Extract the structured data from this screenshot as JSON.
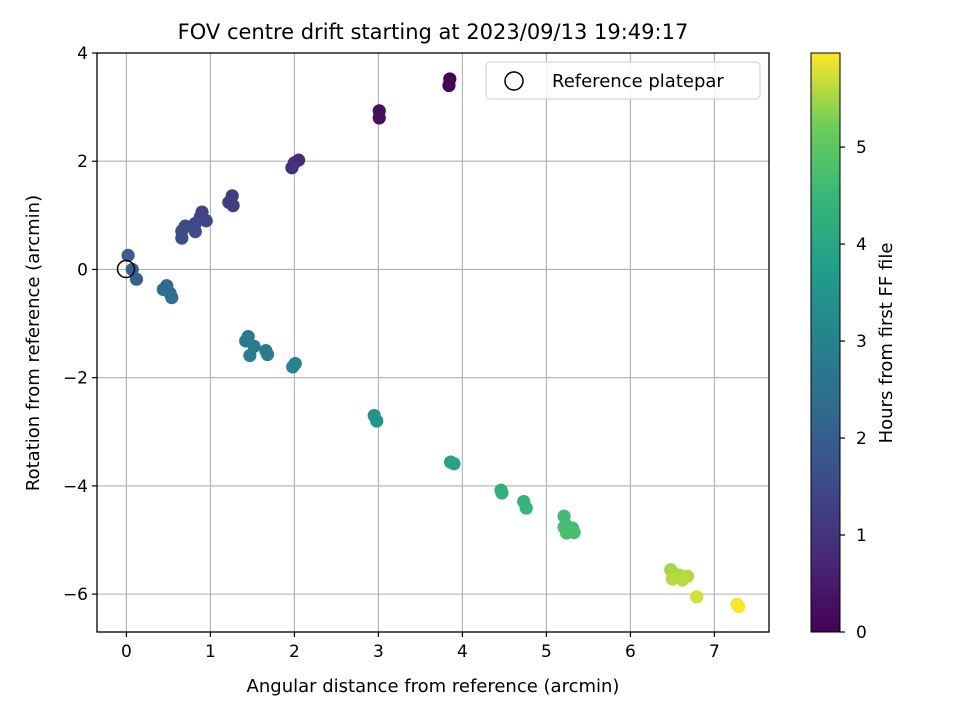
{
  "chart_data": {
    "type": "scatter",
    "title": "FOV centre drift starting at 2023/09/13 19:49:17",
    "xlabel": "Angular distance from reference (arcmin)",
    "ylabel": "Rotation from reference (arcmin)",
    "xlim": [
      -0.35,
      7.65
    ],
    "ylim": [
      -6.7,
      4.0
    ],
    "xticks": [
      0,
      1,
      2,
      3,
      4,
      5,
      6,
      7
    ],
    "xtick_labels": [
      "0",
      "1",
      "2",
      "3",
      "4",
      "5",
      "6",
      "7"
    ],
    "yticks": [
      -6,
      -4,
      -2,
      0,
      2,
      4
    ],
    "ytick_labels": [
      "−6",
      "−4",
      "−2",
      "0",
      "2",
      "4"
    ],
    "grid": true,
    "legend": {
      "position": "top-right",
      "entries": [
        "Reference platepar"
      ]
    },
    "reference_point": {
      "x": 0,
      "y": 0
    },
    "colorbar": {
      "label": "Hours from first FF file",
      "colormap": "viridis",
      "range": [
        0,
        5.97
      ],
      "ticks": [
        0,
        1,
        2,
        3,
        4,
        5
      ],
      "tick_labels": [
        "0",
        "1",
        "2",
        "3",
        "4",
        "5"
      ]
    },
    "points": [
      {
        "x": 3.85,
        "y": 3.52,
        "hours": 0.0
      },
      {
        "x": 3.84,
        "y": 3.4,
        "hours": 0.05
      },
      {
        "x": 3.01,
        "y": 2.93,
        "hours": 0.22
      },
      {
        "x": 3.01,
        "y": 2.8,
        "hours": 0.27
      },
      {
        "x": 2.05,
        "y": 2.02,
        "hours": 0.8
      },
      {
        "x": 2.0,
        "y": 1.97,
        "hours": 0.85
      },
      {
        "x": 1.97,
        "y": 1.88,
        "hours": 0.9
      },
      {
        "x": 1.26,
        "y": 1.36,
        "hours": 1.15
      },
      {
        "x": 1.22,
        "y": 1.24,
        "hours": 1.2
      },
      {
        "x": 1.27,
        "y": 1.18,
        "hours": 1.22
      },
      {
        "x": 0.9,
        "y": 1.06,
        "hours": 1.38
      },
      {
        "x": 0.88,
        "y": 0.97,
        "hours": 1.4
      },
      {
        "x": 0.95,
        "y": 0.9,
        "hours": 1.42
      },
      {
        "x": 0.82,
        "y": 0.85,
        "hours": 1.45
      },
      {
        "x": 0.7,
        "y": 0.8,
        "hours": 1.55
      },
      {
        "x": 0.66,
        "y": 0.71,
        "hours": 1.58
      },
      {
        "x": 0.82,
        "y": 0.7,
        "hours": 1.6
      },
      {
        "x": 0.66,
        "y": 0.58,
        "hours": 1.62
      },
      {
        "x": 0.02,
        "y": 0.26,
        "hours": 2.02
      },
      {
        "x": 0.07,
        "y": 0.0,
        "hours": 2.08
      },
      {
        "x": 0.12,
        "y": -0.18,
        "hours": 2.12
      },
      {
        "x": 0.48,
        "y": -0.3,
        "hours": 2.35
      },
      {
        "x": 0.44,
        "y": -0.37,
        "hours": 2.38
      },
      {
        "x": 0.52,
        "y": -0.44,
        "hours": 2.4
      },
      {
        "x": 0.54,
        "y": -0.52,
        "hours": 2.42
      },
      {
        "x": 1.45,
        "y": -1.24,
        "hours": 2.75
      },
      {
        "x": 1.42,
        "y": -1.32,
        "hours": 2.78
      },
      {
        "x": 1.52,
        "y": -1.42,
        "hours": 2.8
      },
      {
        "x": 1.66,
        "y": -1.5,
        "hours": 2.83
      },
      {
        "x": 1.68,
        "y": -1.57,
        "hours": 2.85
      },
      {
        "x": 1.47,
        "y": -1.59,
        "hours": 2.87
      },
      {
        "x": 2.01,
        "y": -1.74,
        "hours": 3.0
      },
      {
        "x": 1.98,
        "y": -1.8,
        "hours": 3.02
      },
      {
        "x": 2.95,
        "y": -2.7,
        "hours": 3.5
      },
      {
        "x": 2.98,
        "y": -2.8,
        "hours": 3.52
      },
      {
        "x": 3.86,
        "y": -3.56,
        "hours": 3.9
      },
      {
        "x": 3.9,
        "y": -3.59,
        "hours": 3.93
      },
      {
        "x": 4.46,
        "y": -4.08,
        "hours": 4.25
      },
      {
        "x": 4.47,
        "y": -4.13,
        "hours": 4.28
      },
      {
        "x": 4.73,
        "y": -4.29,
        "hours": 4.42
      },
      {
        "x": 4.76,
        "y": -4.41,
        "hours": 4.45
      },
      {
        "x": 5.21,
        "y": -4.56,
        "hours": 4.62
      },
      {
        "x": 5.23,
        "y": -4.72,
        "hours": 4.65
      },
      {
        "x": 5.31,
        "y": -4.78,
        "hours": 4.67
      },
      {
        "x": 5.33,
        "y": -4.86,
        "hours": 4.7
      },
      {
        "x": 5.21,
        "y": -4.76,
        "hours": 4.72
      },
      {
        "x": 5.24,
        "y": -4.87,
        "hours": 4.74
      },
      {
        "x": 6.48,
        "y": -5.55,
        "hours": 5.48
      },
      {
        "x": 6.52,
        "y": -5.62,
        "hours": 5.52
      },
      {
        "x": 6.58,
        "y": -5.65,
        "hours": 5.55
      },
      {
        "x": 6.68,
        "y": -5.67,
        "hours": 5.58
      },
      {
        "x": 6.5,
        "y": -5.72,
        "hours": 5.6
      },
      {
        "x": 6.62,
        "y": -5.74,
        "hours": 5.62
      },
      {
        "x": 6.79,
        "y": -6.05,
        "hours": 5.75
      },
      {
        "x": 7.27,
        "y": -6.19,
        "hours": 5.93
      },
      {
        "x": 7.29,
        "y": -6.23,
        "hours": 5.97
      }
    ]
  }
}
